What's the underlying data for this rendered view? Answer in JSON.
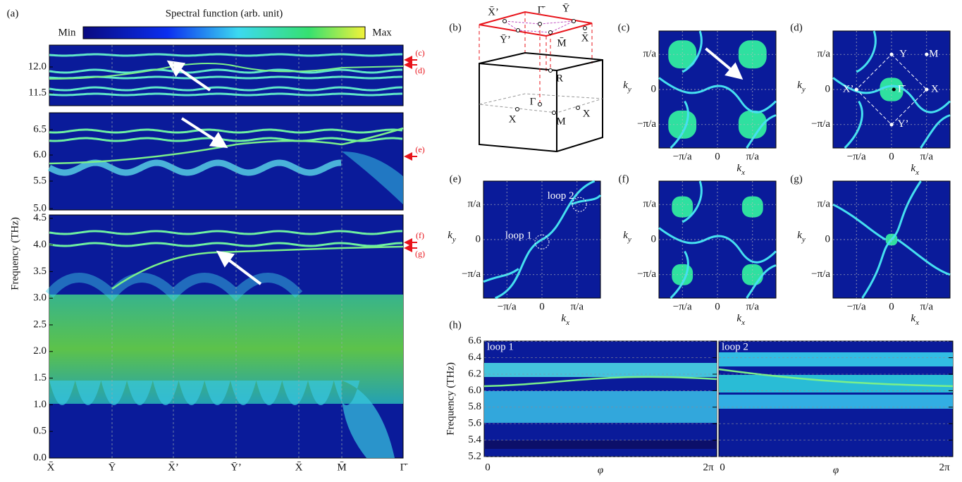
{
  "panel_a": {
    "label": "(a)",
    "colorbar": {
      "title": "Spectral function (arb. unit)",
      "min": "Min",
      "max": "Max"
    },
    "ylabel": "Frequency (THz)",
    "top_yticks": [
      "11.5",
      "12.0"
    ],
    "middle_yticks": [
      "5.0",
      "5.5",
      "6.0",
      "6.5"
    ],
    "bottom_yticks": [
      "0.0",
      "0.5",
      "1.0",
      "1.5",
      "2.0",
      "2.5",
      "3.0",
      "3.5",
      "4.0",
      "4.5"
    ],
    "xticks": [
      "X̄",
      "Ȳ",
      "X̄’",
      "Ȳ’",
      "X̄",
      "M̄",
      "Γ̄"
    ],
    "markers": [
      "(c)",
      "(d)",
      "(e)",
      "(f)",
      "(g)"
    ]
  },
  "panel_b": {
    "label": "(b)",
    "surface_points": [
      "X̄’",
      "Γ̄",
      "Ȳ",
      "Ȳ’",
      "M̄",
      "X̄"
    ],
    "bulk_points": [
      "R",
      "Γ",
      "X",
      "M",
      "X"
    ]
  },
  "maps": [
    {
      "label": "(c)",
      "yticks": [
        "π/a",
        "0",
        "−π/a"
      ],
      "xticks": [
        "−π/a",
        "0",
        "π/a"
      ],
      "xlabel": {
        "base": "k",
        "sub": "x"
      },
      "ylabel": {
        "base": "k",
        "sub": "y"
      }
    },
    {
      "label": "(d)",
      "yticks": [
        "π/a",
        "0",
        "−π/a"
      ],
      "xticks": [
        "−π/a",
        "0",
        "π/a"
      ],
      "xlabel": {
        "base": "k",
        "sub": "x"
      },
      "ylabel": {
        "base": "k",
        "sub": "y"
      },
      "points": [
        "Y",
        "M",
        "X’",
        "Γ̄",
        "X",
        "Y’"
      ]
    },
    {
      "label": "(e)",
      "yticks": [
        "π/a",
        "0",
        "−π/a"
      ],
      "xticks": [
        "−π/a",
        "0",
        "π/a"
      ],
      "xlabel": {
        "base": "k",
        "sub": "x"
      },
      "ylabel": {
        "base": "k",
        "sub": "y"
      },
      "loops": [
        "loop 1",
        "loop 2"
      ]
    },
    {
      "label": "(f)",
      "yticks": [
        "π/a",
        "0",
        "−π/a"
      ],
      "xticks": [
        "−π/a",
        "0",
        "π/a"
      ],
      "xlabel": {
        "base": "k",
        "sub": "x"
      },
      "ylabel": {
        "base": "k",
        "sub": "y"
      }
    },
    {
      "label": "(g)",
      "yticks": [
        "π/a",
        "0",
        "−π/a"
      ],
      "xticks": [
        "−π/a",
        "0",
        "π/a"
      ],
      "xlabel": {
        "base": "k",
        "sub": "x"
      },
      "ylabel": {
        "base": "k",
        "sub": "y"
      }
    }
  ],
  "panel_h": {
    "label": "(h)",
    "ylabel": "Frequency (THz)",
    "yticks": [
      "5.2",
      "5.4",
      "5.6",
      "5.8",
      "6.0",
      "6.2",
      "6.4",
      "6.6"
    ],
    "panels": [
      {
        "title": "loop 1",
        "xticks": [
          "0",
          "2π"
        ],
        "xlabel": "φ"
      },
      {
        "title": "loop 2",
        "xticks": [
          "0",
          "2π"
        ],
        "xlabel": "φ"
      }
    ]
  }
}
